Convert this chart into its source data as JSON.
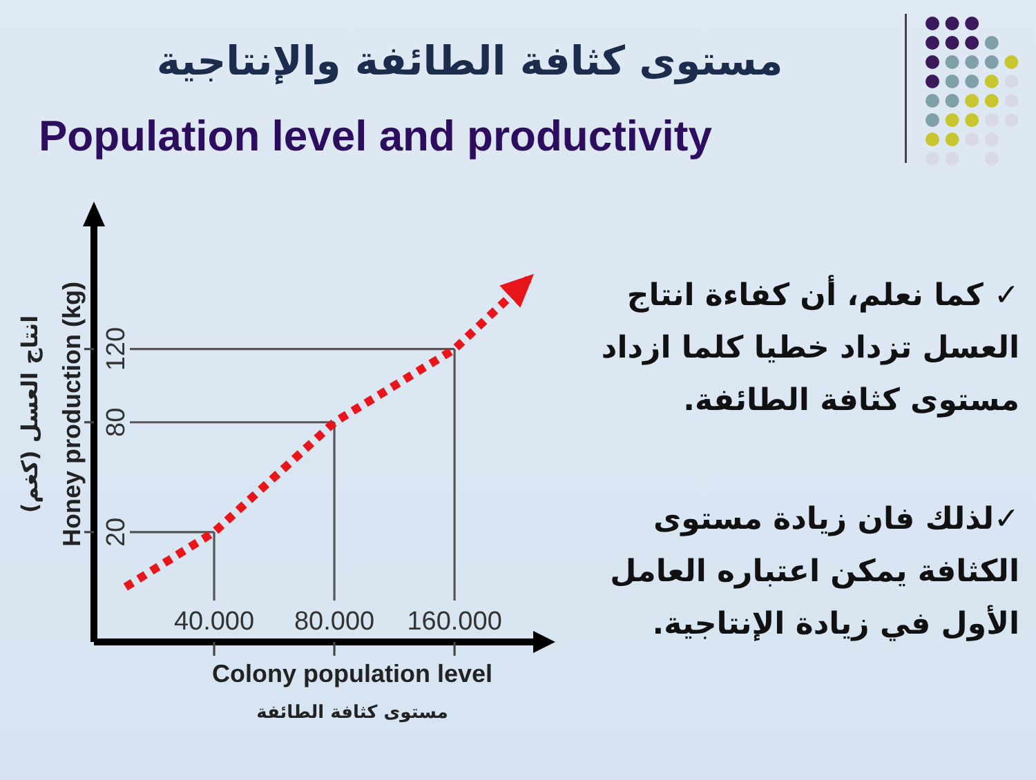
{
  "chart_data": {
    "type": "line",
    "title": "مستوى كثافة الطائفة والإنتاجية",
    "subtitle": "Population level and productivity",
    "xlabel": "Colony population level\nمستوى كثافة الطائفة",
    "ylabel": "انتاج العسل (كغم)\nHoney production (kg)",
    "x": [
      24000,
      40000,
      80000,
      160000,
      250000
    ],
    "series": [
      {
        "color": "#e8161b",
        "values": [
          -10,
          20,
          80,
          120,
          160
        ]
      }
    ],
    "line_style": "dotted",
    "marker": "none",
    "log": "x",
    "xlim": [
      20000,
      260000
    ],
    "xticks": [
      {
        "value": 40000,
        "label": "40.000"
      },
      {
        "value": 80000,
        "label": "80.000"
      },
      {
        "value": 160000,
        "label": "160.000"
      }
    ],
    "ylim": [
      -40,
      190
    ],
    "yticks": [
      20,
      80,
      120
    ],
    "ref_lines": [
      {
        "axis": "x",
        "value": 40000,
        "color": "#555555"
      },
      {
        "axis": "x",
        "value": 80000,
        "color": "#555555"
      },
      {
        "axis": "x",
        "value": 160000,
        "color": "#555555"
      },
      {
        "axis": "y",
        "value": 20,
        "color": "#555555"
      },
      {
        "axis": "y",
        "value": 80,
        "color": "#555555"
      },
      {
        "axis": "y",
        "value": 120,
        "color": "#555555"
      }
    ],
    "annotations": [
      "✓ كما نعلم، أن كفاءة انتاج العسل تزداد خطيا كلما ازداد مستوى كثافة الطائفة.",
      "✓لذلك فان زيادة مستوى الكثافة يمكن اعتباره العامل الأول في زيادة الإنتاجية."
    ]
  }
}
